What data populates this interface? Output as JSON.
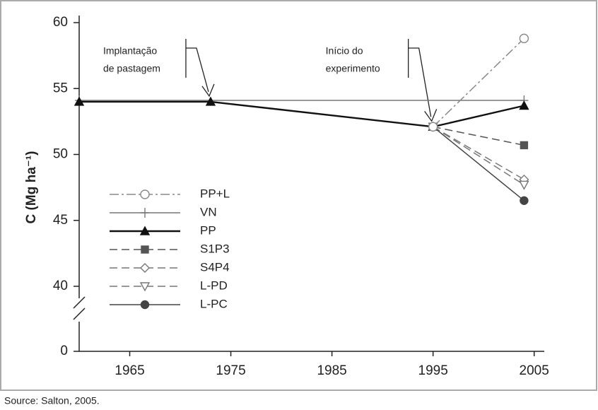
{
  "chart_data": {
    "type": "line",
    "ylabel": "C (Mg ha⁻¹)",
    "xlim": [
      1960,
      2006
    ],
    "xticks": [
      1965,
      1975,
      1985,
      1995,
      2005
    ],
    "ylim": [
      0,
      60
    ],
    "yticks": [
      0,
      40,
      45,
      50,
      55,
      60
    ],
    "y_break": [
      0,
      40
    ],
    "annotations": [
      {
        "lines": [
          "Implantação",
          "de pastagem"
        ],
        "x": 1973,
        "y": 54
      },
      {
        "lines": [
          "Início do",
          "experimento"
        ],
        "x": 1995,
        "y": 52.1
      }
    ],
    "series": [
      {
        "name": "VN",
        "color": "#777777",
        "dash": "solid",
        "marker": "plus",
        "x": [
          1960,
          2004
        ],
        "values": [
          54.1,
          54.1
        ]
      },
      {
        "name": "PP",
        "color": "#111111",
        "dash": "solid",
        "marker": "triangle",
        "x": [
          1960,
          1973,
          1995,
          2004
        ],
        "values": [
          54,
          54,
          52.1,
          53.7
        ]
      },
      {
        "name": "S1P3",
        "color": "#555555",
        "dash": "dashed",
        "marker": "square",
        "x": [
          1995,
          2004
        ],
        "values": [
          52.1,
          50.7
        ]
      },
      {
        "name": "S4P4",
        "color": "#777777",
        "dash": "dashed",
        "marker": "diamond",
        "x": [
          1995,
          2004
        ],
        "values": [
          52.1,
          48.1
        ]
      },
      {
        "name": "L-PD",
        "color": "#777777",
        "dash": "dashed",
        "marker": "triangle-down",
        "x": [
          1995,
          2004
        ],
        "values": [
          52.1,
          47.7
        ]
      },
      {
        "name": "L-PC",
        "color": "#444444",
        "dash": "solid",
        "marker": "circle",
        "x": [
          1995,
          2004
        ],
        "values": [
          52.1,
          46.5
        ]
      },
      {
        "name": "PP+L",
        "color": "#888888",
        "dash": "dash-dot",
        "marker": "circle-open",
        "x": [
          1995,
          2004
        ],
        "values": [
          52.1,
          58.8
        ]
      }
    ],
    "legend_order": [
      6,
      0,
      1,
      2,
      3,
      4,
      5
    ]
  },
  "caption": "Source: Salton, 2005."
}
